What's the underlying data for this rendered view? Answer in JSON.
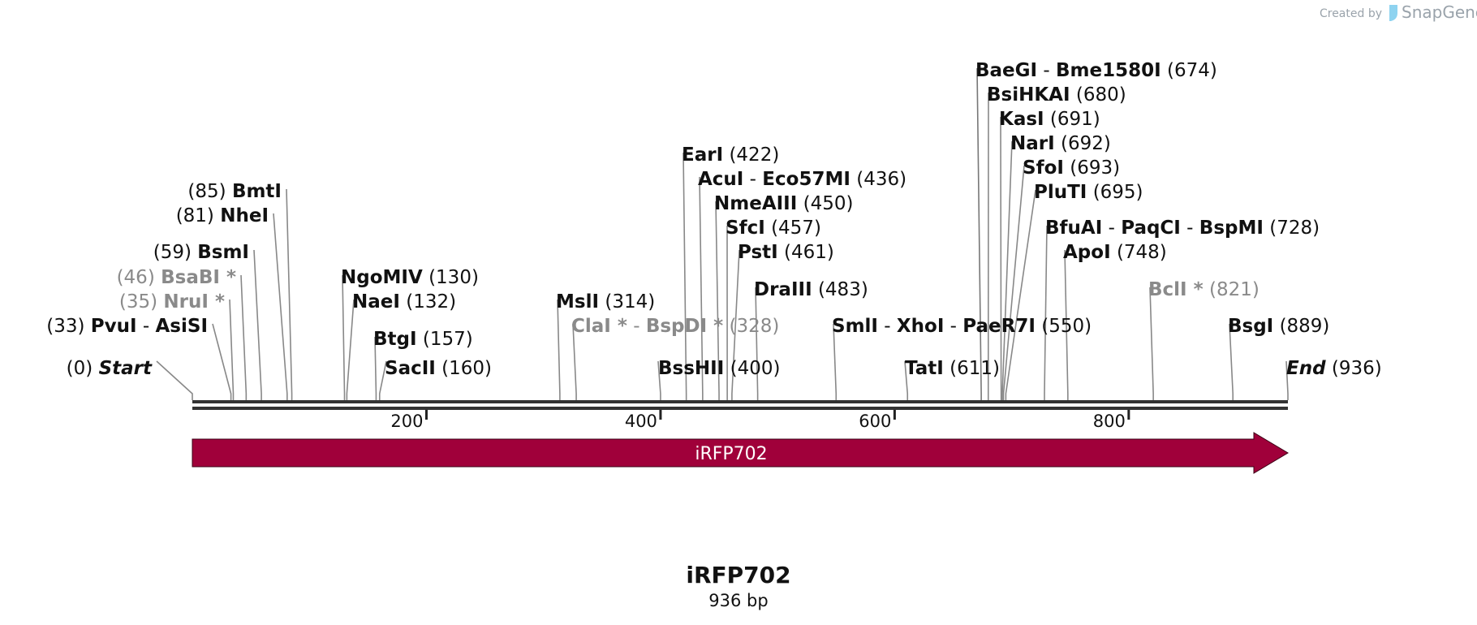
{
  "credit": {
    "prefix": "Created by",
    "brand": "SnapGene"
  },
  "map": {
    "name": "iRFP702",
    "length_label": "936 bp",
    "length_bp": 936,
    "backbone_color": "#333333",
    "feature": {
      "label": "iRFP702",
      "start": 0,
      "end": 936,
      "direction": "forward",
      "color": "#a0003a"
    },
    "ruler": [
      {
        "bp": 200,
        "label": "200"
      },
      {
        "bp": 400,
        "label": "400"
      },
      {
        "bp": 600,
        "label": "600"
      },
      {
        "bp": 800,
        "label": "800"
      }
    ]
  },
  "sites": [
    {
      "id": "start",
      "enzymes": [
        {
          "name": "Start",
          "italic": true
        }
      ],
      "pos": "(0)",
      "cuts": [
        0
      ]
    },
    {
      "id": "pvui-asisi",
      "enzymes": [
        {
          "name": "PvuI"
        },
        {
          "name": "AsiSI"
        }
      ],
      "pos": "(33)",
      "cuts": [
        33
      ]
    },
    {
      "id": "nrui",
      "enzymes": [
        {
          "name": "NruI",
          "gray": true,
          "star": true
        }
      ],
      "pos": "(35)",
      "cuts": [
        35
      ]
    },
    {
      "id": "bsabi",
      "enzymes": [
        {
          "name": "BsaBI",
          "gray": true,
          "star": true
        }
      ],
      "pos": "(46)",
      "cuts": [
        46
      ]
    },
    {
      "id": "bsmi",
      "enzymes": [
        {
          "name": "BsmI"
        }
      ],
      "pos": "(59)",
      "cuts": [
        59
      ]
    },
    {
      "id": "nhei",
      "enzymes": [
        {
          "name": "NheI"
        }
      ],
      "pos": "(81)",
      "cuts": [
        81
      ]
    },
    {
      "id": "bmti",
      "enzymes": [
        {
          "name": "BmtI"
        }
      ],
      "pos": "(85)",
      "cuts": [
        85
      ]
    },
    {
      "id": "ngomiv",
      "enzymes": [
        {
          "name": "NgoMIV"
        }
      ],
      "pos": "(130)",
      "cuts": [
        130
      ]
    },
    {
      "id": "naei",
      "enzymes": [
        {
          "name": "NaeI"
        }
      ],
      "pos": "(132)",
      "cuts": [
        132
      ]
    },
    {
      "id": "btgi",
      "enzymes": [
        {
          "name": "BtgI"
        }
      ],
      "pos": "(157)",
      "cuts": [
        157
      ]
    },
    {
      "id": "sacii",
      "enzymes": [
        {
          "name": "SacII"
        }
      ],
      "pos": "(160)",
      "cuts": [
        160
      ]
    },
    {
      "id": "msli",
      "enzymes": [
        {
          "name": "MslI"
        }
      ],
      "pos": "(314)",
      "cuts": [
        314
      ]
    },
    {
      "id": "clai-bspdi",
      "enzymes": [
        {
          "name": "ClaI",
          "gray": true,
          "star": true
        },
        {
          "name": "BspDI",
          "gray": true,
          "star": true
        }
      ],
      "pos": "(328)",
      "cuts": [
        328
      ]
    },
    {
      "id": "bsshii",
      "enzymes": [
        {
          "name": "BssHII"
        }
      ],
      "pos": "(400)",
      "cuts": [
        400
      ]
    },
    {
      "id": "eari",
      "enzymes": [
        {
          "name": "EarI"
        }
      ],
      "pos": "(422)",
      "cuts": [
        422
      ]
    },
    {
      "id": "acui-eco57mi",
      "enzymes": [
        {
          "name": "AcuI"
        },
        {
          "name": "Eco57MI"
        }
      ],
      "pos": "(436)",
      "cuts": [
        436
      ]
    },
    {
      "id": "nmeaiii",
      "enzymes": [
        {
          "name": "NmeAIII"
        }
      ],
      "pos": "(450)",
      "cuts": [
        450
      ]
    },
    {
      "id": "sfci",
      "enzymes": [
        {
          "name": "SfcI"
        }
      ],
      "pos": "(457)",
      "cuts": [
        457
      ]
    },
    {
      "id": "psti",
      "enzymes": [
        {
          "name": "PstI"
        }
      ],
      "pos": "(461)",
      "cuts": [
        461
      ]
    },
    {
      "id": "draiii",
      "enzymes": [
        {
          "name": "DraIII"
        }
      ],
      "pos": "(483)",
      "cuts": [
        483
      ]
    },
    {
      "id": "smli-xhoi-paer7i",
      "enzymes": [
        {
          "name": "SmlI"
        },
        {
          "name": "XhoI"
        },
        {
          "name": "PaeR7I"
        }
      ],
      "pos": "(550)",
      "cuts": [
        550
      ]
    },
    {
      "id": "tati",
      "enzymes": [
        {
          "name": "TatI"
        }
      ],
      "pos": "(611)",
      "cuts": [
        611
      ]
    },
    {
      "id": "baegi-bme1580i",
      "enzymes": [
        {
          "name": "BaeGI"
        },
        {
          "name": "Bme1580I"
        }
      ],
      "pos": "(674)",
      "cuts": [
        674
      ]
    },
    {
      "id": "bsihkai",
      "enzymes": [
        {
          "name": "BsiHKAI"
        }
      ],
      "pos": "(680)",
      "cuts": [
        680
      ]
    },
    {
      "id": "kasi",
      "enzymes": [
        {
          "name": "KasI"
        }
      ],
      "pos": "(691)",
      "cuts": [
        691
      ]
    },
    {
      "id": "nari",
      "enzymes": [
        {
          "name": "NarI"
        }
      ],
      "pos": "(692)",
      "cuts": [
        692
      ]
    },
    {
      "id": "sfoi",
      "enzymes": [
        {
          "name": "SfoI"
        }
      ],
      "pos": "(693)",
      "cuts": [
        693
      ]
    },
    {
      "id": "pluti",
      "enzymes": [
        {
          "name": "PluTI"
        }
      ],
      "pos": "(695)",
      "cuts": [
        695
      ]
    },
    {
      "id": "bfuai-paqci-bspmi",
      "enzymes": [
        {
          "name": "BfuAI"
        },
        {
          "name": "PaqCI"
        },
        {
          "name": "BspMI"
        }
      ],
      "pos": "(728)",
      "cuts": [
        728
      ]
    },
    {
      "id": "apoi",
      "enzymes": [
        {
          "name": "ApoI"
        }
      ],
      "pos": "(748)",
      "cuts": [
        748
      ]
    },
    {
      "id": "bcli",
      "enzymes": [
        {
          "name": "BclI",
          "gray": true,
          "star": true
        }
      ],
      "pos": "(821)",
      "cuts": [
        821
      ]
    },
    {
      "id": "bsgi",
      "enzymes": [
        {
          "name": "BsgI"
        }
      ],
      "pos": "(889)",
      "cuts": [
        889
      ]
    },
    {
      "id": "end",
      "enzymes": [
        {
          "name": "End",
          "italic": true
        }
      ],
      "pos": "(936)",
      "cuts": [
        936
      ]
    }
  ]
}
